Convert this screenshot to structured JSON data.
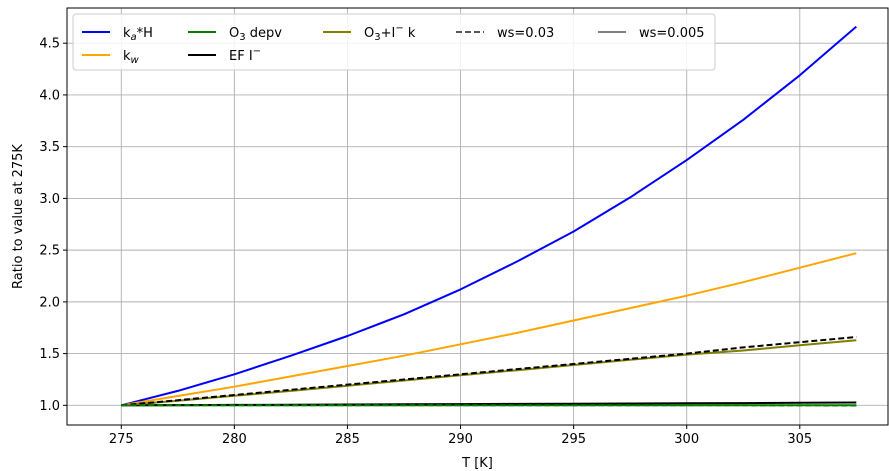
{
  "chart_data": {
    "type": "line",
    "xlabel": "T [K]",
    "ylabel": "Ratio to value at 275K",
    "xlim": [
      272.6,
      308.9
    ],
    "ylim": [
      0.81,
      4.84
    ],
    "xticks": [
      275,
      280,
      285,
      290,
      295,
      300,
      305
    ],
    "yticks": [
      1.0,
      1.5,
      2.0,
      2.5,
      3.0,
      3.5,
      4.0,
      4.5
    ],
    "xtick_labels": [
      "275",
      "280",
      "285",
      "290",
      "295",
      "300",
      "305"
    ],
    "ytick_labels": [
      "1.0",
      "1.5",
      "2.0",
      "2.5",
      "3.0",
      "3.5",
      "4.0",
      "4.5"
    ],
    "grid": true,
    "legend_placement": "top-left",
    "x": [
      275,
      277.5,
      280,
      282.5,
      285,
      287.5,
      290,
      292.5,
      295,
      297.5,
      300,
      302.5,
      305,
      307.5
    ],
    "series": [
      {
        "name": "k",
        "sub": "a",
        "suffix": "*H",
        "color": "#0000ff",
        "dash": "solid",
        "values": [
          1.0,
          1.14,
          1.3,
          1.48,
          1.67,
          1.88,
          2.12,
          2.39,
          2.68,
          3.01,
          3.37,
          3.76,
          4.19,
          4.66
        ]
      },
      {
        "name": "k",
        "sub": "w",
        "suffix": "",
        "color": "#ffa500",
        "dash": "solid",
        "values": [
          1.0,
          1.09,
          1.18,
          1.28,
          1.38,
          1.48,
          1.59,
          1.7,
          1.82,
          1.94,
          2.06,
          2.19,
          2.33,
          2.47
        ]
      },
      {
        "name": "O",
        "sub": "3",
        "suffix": " depv",
        "color": "#008000",
        "dash": "solid",
        "values": [
          1.0,
          1.0,
          1.0,
          1.0,
          1.0,
          1.0,
          1.0,
          1.0,
          1.0,
          1.0,
          1.0,
          1.0,
          1.0,
          1.0
        ]
      },
      {
        "name": "EF I",
        "sup": "−",
        "suffix": "",
        "color": "#000000",
        "dash": "solid",
        "values": [
          1.0,
          1.002,
          1.004,
          1.006,
          1.008,
          1.01,
          1.012,
          1.014,
          1.016,
          1.018,
          1.02,
          1.022,
          1.025,
          1.027
        ]
      },
      {
        "name": "O",
        "sub": "3",
        "mid": "+I",
        "sup": "−",
        "suffix": " k",
        "color": "#808000",
        "dash": "solid",
        "values": [
          1.0,
          1.045,
          1.092,
          1.14,
          1.19,
          1.24,
          1.29,
          1.34,
          1.39,
          1.44,
          1.49,
          1.53,
          1.58,
          1.63
        ]
      },
      {
        "name": "ws=0.03",
        "color": "#555555",
        "dash": "dashed",
        "legend_only": true
      },
      {
        "name": "ws=0.005",
        "color": "#808080",
        "dash": "solid",
        "legend_only": true
      }
    ],
    "overlay_dashed": [
      {
        "color": "#000000",
        "values": [
          1.0,
          1.05,
          1.1,
          1.15,
          1.2,
          1.25,
          1.3,
          1.35,
          1.4,
          1.45,
          1.5,
          1.56,
          1.61,
          1.66
        ]
      },
      {
        "color": "#008000",
        "values": [
          1.0,
          1.0,
          1.0,
          1.0,
          1.0,
          1.0,
          1.0,
          1.0,
          1.0,
          1.0,
          1.0,
          1.0,
          0.999,
          0.998
        ]
      }
    ]
  }
}
